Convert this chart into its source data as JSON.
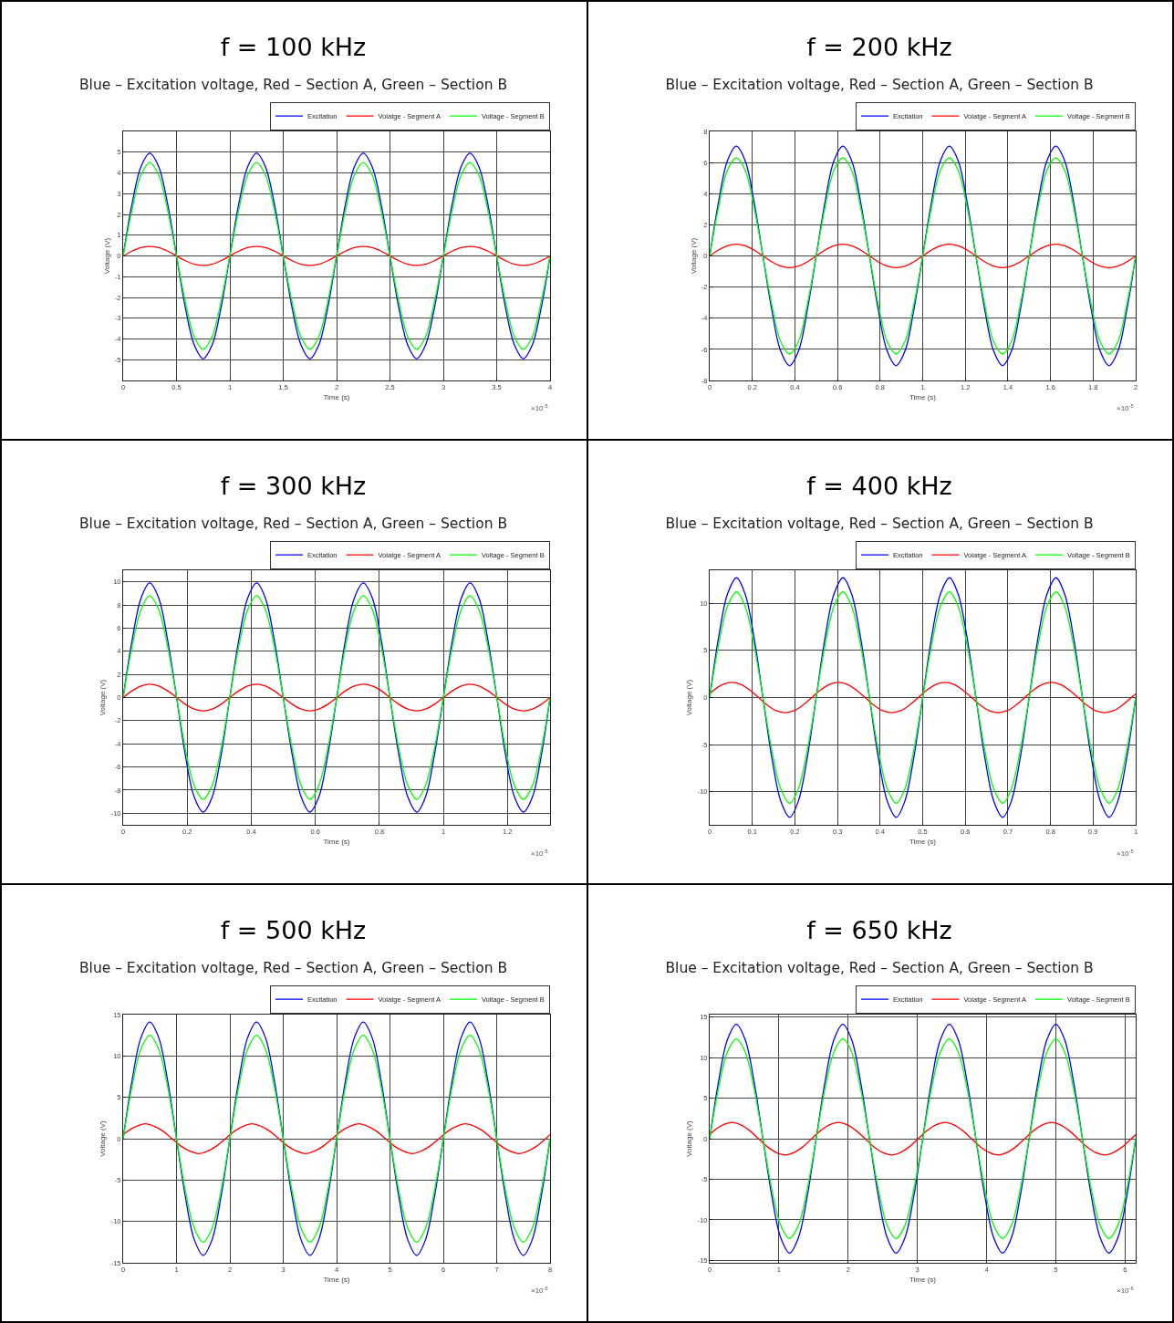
{
  "chart_data": [
    {
      "type": "line",
      "title": "f = 100 kHz",
      "subtitle": "Blue – Excitation voltage, Red – Section A, Green – Section B",
      "xlabel": "Time (s)",
      "ylabel": "Voltage (V)",
      "annotations": [
        "×10$^{-5}$"
      ],
      "grid": true,
      "legend": "top right",
      "xlim": [
        0,
        4
      ],
      "xticks": [
        0,
        0.5,
        1,
        1.5,
        2,
        2.5,
        3,
        3.5,
        4
      ],
      "ylim": [
        -6,
        6
      ],
      "yticks": [
        -5,
        -4,
        -3,
        -2,
        -1,
        0,
        1,
        2,
        3,
        4,
        5
      ],
      "x": [
        0,
        0.083,
        0.167,
        0.25,
        0.333,
        0.417,
        0.5,
        0.583,
        0.667,
        0.75,
        0.833,
        0.917,
        1,
        1.083,
        1.167,
        1.25,
        1.333,
        1.417,
        1.5,
        1.583,
        1.667,
        1.75,
        1.833,
        1.917,
        2,
        2.083,
        2.167,
        2.25,
        2.333,
        2.417,
        2.5,
        2.583,
        2.667,
        2.75,
        2.833,
        2.917,
        3,
        3.083,
        3.167,
        3.25,
        3.333,
        3.417,
        3.5,
        3.583,
        3.667,
        3.75,
        3.833,
        3.917,
        4
      ],
      "series": [
        {
          "name": "Excitation",
          "color": "#0000ff",
          "values": [
            0,
            2.5,
            4.3,
            4.95,
            4.3,
            2.5,
            0,
            -2.5,
            -4.3,
            -4.95,
            -4.3,
            -2.5,
            0,
            2.5,
            4.3,
            4.95,
            4.3,
            2.5,
            0,
            -2.5,
            -4.3,
            -4.95,
            -4.3,
            -2.5,
            0,
            2.5,
            4.3,
            4.95,
            4.3,
            2.5,
            0,
            -2.5,
            -4.3,
            -4.95,
            -4.3,
            -2.5,
            0,
            2.5,
            4.3,
            4.95,
            4.3,
            2.5,
            0,
            -2.5,
            -4.3,
            -4.95,
            -4.3,
            -2.5,
            0
          ]
        },
        {
          "name": "Volatge - Segment A",
          "color": "#ff0000",
          "values": [
            0,
            0.23,
            0.4,
            0.46,
            0.4,
            0.23,
            0,
            -0.23,
            -0.4,
            -0.46,
            -0.4,
            -0.23,
            0,
            0.23,
            0.4,
            0.46,
            0.4,
            0.23,
            0,
            -0.23,
            -0.4,
            -0.46,
            -0.4,
            -0.23,
            0,
            0.23,
            0.4,
            0.46,
            0.4,
            0.23,
            0,
            -0.23,
            -0.4,
            -0.46,
            -0.4,
            -0.23,
            0,
            0.23,
            0.4,
            0.46,
            0.4,
            0.23,
            0,
            -0.23,
            -0.4,
            -0.46,
            -0.4,
            -0.23,
            0
          ]
        },
        {
          "name": "Voltage - Segment B",
          "color": "#00ff00",
          "values": [
            0,
            2.2,
            3.9,
            4.5,
            3.9,
            2.2,
            0,
            -2.2,
            -3.9,
            -4.5,
            -3.9,
            -2.2,
            0,
            2.2,
            3.9,
            4.5,
            3.9,
            2.2,
            0,
            -2.2,
            -3.9,
            -4.5,
            -3.9,
            -2.2,
            0,
            2.2,
            3.9,
            4.5,
            3.9,
            2.2,
            0,
            -2.2,
            -3.9,
            -4.5,
            -3.9,
            -2.2,
            0,
            2.2,
            3.9,
            4.5,
            3.9,
            2.2,
            0,
            -2.2,
            -3.9,
            -4.5,
            -3.9,
            -2.2,
            0
          ]
        }
      ]
    },
    {
      "type": "line",
      "title": "f = 200 kHz",
      "subtitle": "Blue – Excitation voltage, Red – Section A, Green – Section B",
      "xlabel": "Time (s)",
      "ylabel": "Voltage (V)",
      "annotations": [
        "×10$^{-5}$"
      ],
      "grid": true,
      "legend": "top right",
      "xlim": [
        0,
        2
      ],
      "xticks": [
        0,
        0.2,
        0.4,
        0.6,
        0.8,
        1,
        1.2,
        1.4,
        1.6,
        1.8,
        2
      ],
      "ylim": [
        -8,
        8
      ],
      "yticks": [
        -8,
        -6,
        -4,
        -2,
        0,
        2,
        4,
        6,
        8
      ],
      "x": [
        0,
        0.042,
        0.083,
        0.125,
        0.167,
        0.208,
        0.25,
        0.292,
        0.333,
        0.375,
        0.417,
        0.458,
        0.5,
        0.542,
        0.583,
        0.625,
        0.667,
        0.708,
        0.75,
        0.792,
        0.833,
        0.875,
        0.917,
        0.958,
        1,
        1.042,
        1.083,
        1.125,
        1.167,
        1.208,
        1.25,
        1.292,
        1.333,
        1.375,
        1.417,
        1.458,
        1.5,
        1.542,
        1.583,
        1.625,
        1.667,
        1.708,
        1.75,
        1.792,
        1.833,
        1.875,
        1.917,
        1.958,
        2
      ],
      "series": [
        {
          "name": "Excitation",
          "color": "#0000ff",
          "values": [
            0,
            3.5,
            6.1,
            7.05,
            6.1,
            3.5,
            0,
            -3.5,
            -6.1,
            -7.05,
            -6.1,
            -3.5,
            0,
            3.5,
            6.1,
            7.05,
            6.1,
            3.5,
            0,
            -3.5,
            -6.1,
            -7.05,
            -6.1,
            -3.5,
            0,
            3.5,
            6.1,
            7.05,
            6.1,
            3.5,
            0,
            -3.5,
            -6.1,
            -7.05,
            -6.1,
            -3.5,
            0,
            3.5,
            6.1,
            7.05,
            6.1,
            3.5,
            0,
            -3.5,
            -6.1,
            -7.05,
            -6.1,
            -3.5,
            0
          ]
        },
        {
          "name": "Volatge - Segment A",
          "color": "#ff0000",
          "values": [
            0,
            0.38,
            0.65,
            0.75,
            0.65,
            0.38,
            0,
            -0.38,
            -0.65,
            -0.75,
            -0.65,
            -0.38,
            0,
            0.38,
            0.65,
            0.75,
            0.65,
            0.38,
            0,
            -0.38,
            -0.65,
            -0.75,
            -0.65,
            -0.38,
            0,
            0.38,
            0.65,
            0.75,
            0.65,
            0.38,
            0,
            -0.38,
            -0.65,
            -0.75,
            -0.65,
            -0.38,
            0,
            0.38,
            0.65,
            0.75,
            0.65,
            0.38,
            0,
            -0.38,
            -0.65,
            -0.75,
            -0.65,
            -0.38,
            0
          ]
        },
        {
          "name": "Voltage - Segment B",
          "color": "#00ff00",
          "values": [
            0,
            3.15,
            5.5,
            6.3,
            5.5,
            3.15,
            0,
            -3.15,
            -5.5,
            -6.3,
            -5.5,
            -3.15,
            0,
            3.15,
            5.5,
            6.3,
            5.5,
            3.15,
            0,
            -3.15,
            -5.5,
            -6.3,
            -5.5,
            -3.15,
            0,
            3.15,
            5.5,
            6.3,
            5.5,
            3.15,
            0,
            -3.15,
            -5.5,
            -6.3,
            -5.5,
            -3.15,
            0,
            3.15,
            5.5,
            6.3,
            5.5,
            3.15,
            0,
            -3.15,
            -5.5,
            -6.3,
            -5.5,
            -3.15,
            0
          ]
        }
      ]
    },
    {
      "type": "line",
      "title": "f = 300 kHz",
      "subtitle": "Blue – Excitation voltage, Red – Section A, Green – Section B",
      "xlabel": "Time (s)",
      "ylabel": "Voltage (V)",
      "annotations": [
        "×10$^{-5}$"
      ],
      "grid": true,
      "legend": "top right",
      "xlim": [
        0,
        1.333
      ],
      "xticks": [
        0,
        0.2,
        0.4,
        0.6,
        0.8,
        1,
        1.2
      ],
      "ylim": [
        -11,
        11
      ],
      "yticks": [
        -10,
        -8,
        -6,
        -4,
        -2,
        0,
        2,
        4,
        6,
        8,
        10
      ],
      "x": [
        0,
        0.028,
        0.056,
        0.083,
        0.111,
        0.139,
        0.167,
        0.194,
        0.222,
        0.25,
        0.278,
        0.306,
        0.333,
        0.361,
        0.389,
        0.417,
        0.444,
        0.472,
        0.5,
        0.528,
        0.556,
        0.583,
        0.611,
        0.639,
        0.667,
        0.694,
        0.722,
        0.75,
        0.778,
        0.806,
        0.833,
        0.861,
        0.889,
        0.917,
        0.944,
        0.972,
        1,
        1.028,
        1.056,
        1.083,
        1.111,
        1.139,
        1.167,
        1.194,
        1.222,
        1.25,
        1.278,
        1.306,
        1.333
      ],
      "series": [
        {
          "name": "Excitation",
          "color": "#0000ff",
          "values": [
            0,
            4.95,
            8.6,
            9.9,
            8.6,
            4.95,
            0,
            -4.95,
            -8.6,
            -9.9,
            -8.6,
            -4.95,
            0,
            4.95,
            8.6,
            9.9,
            8.6,
            4.95,
            0,
            -4.95,
            -8.6,
            -9.9,
            -8.6,
            -4.95,
            0,
            4.95,
            8.6,
            9.9,
            8.6,
            4.95,
            0,
            -4.95,
            -8.6,
            -9.9,
            -8.6,
            -4.95,
            0,
            4.95,
            8.6,
            9.9,
            8.6,
            4.95,
            0,
            -4.95,
            -8.6,
            -9.9,
            -8.6,
            -4.95,
            0
          ]
        },
        {
          "name": "Volatge - Segment A",
          "color": "#ff0000",
          "values": [
            0,
            0.58,
            1,
            1.15,
            1,
            0.58,
            0,
            -0.58,
            -1,
            -1.15,
            -1,
            -0.58,
            0,
            0.58,
            1,
            1.15,
            1,
            0.58,
            0,
            -0.58,
            -1,
            -1.15,
            -1,
            -0.58,
            0,
            0.58,
            1,
            1.15,
            1,
            0.58,
            0,
            -0.58,
            -1,
            -1.15,
            -1,
            -0.58,
            0,
            0.58,
            1,
            1.15,
            1,
            0.58,
            0,
            -0.58,
            -1,
            -1.15,
            -1,
            -0.58,
            0
          ]
        },
        {
          "name": "Voltage - Segment B",
          "color": "#00ff00",
          "values": [
            0,
            4.4,
            7.6,
            8.8,
            7.6,
            4.4,
            0,
            -4.4,
            -7.6,
            -8.8,
            -7.6,
            -4.4,
            0,
            4.4,
            7.6,
            8.8,
            7.6,
            4.4,
            0,
            -4.4,
            -7.6,
            -8.8,
            -7.6,
            -4.4,
            0,
            4.4,
            7.6,
            8.8,
            7.6,
            4.4,
            0,
            -4.4,
            -7.6,
            -8.8,
            -7.6,
            -4.4,
            0,
            4.4,
            7.6,
            8.8,
            7.6,
            4.4,
            0,
            -4.4,
            -7.6,
            -8.8,
            -7.6,
            -4.4,
            0
          ]
        }
      ]
    },
    {
      "type": "line",
      "title": "f = 400 kHz",
      "subtitle": "Blue – Excitation voltage, Red – Section A, Green – Section B",
      "xlabel": "Time (s)",
      "ylabel": "Voltage (V)",
      "annotations": [
        "×10$^{-5}$"
      ],
      "grid": true,
      "legend": "top right",
      "xlim": [
        0,
        1
      ],
      "xticks": [
        0,
        0.1,
        0.2,
        0.3,
        0.4,
        0.5,
        0.6,
        0.7,
        0.8,
        0.9,
        1
      ],
      "ylim": [
        -13.5,
        13.5
      ],
      "yticks": [
        -10,
        -5,
        0,
        5,
        10
      ],
      "x": [
        0,
        0.021,
        0.042,
        0.063,
        0.083,
        0.104,
        0.125,
        0.146,
        0.167,
        0.188,
        0.208,
        0.229,
        0.25,
        0.271,
        0.292,
        0.313,
        0.333,
        0.354,
        0.375,
        0.396,
        0.417,
        0.438,
        0.458,
        0.479,
        0.5,
        0.521,
        0.542,
        0.563,
        0.583,
        0.604,
        0.625,
        0.646,
        0.667,
        0.688,
        0.708,
        0.729,
        0.75,
        0.771,
        0.792,
        0.813,
        0.833,
        0.854,
        0.875,
        0.896,
        0.917,
        0.938,
        0.958,
        0.979,
        1
      ],
      "series": [
        {
          "name": "Excitation",
          "color": "#0000ff",
          "values": [
            0,
            6.4,
            11,
            12.7,
            11,
            6.4,
            0,
            -6.4,
            -11,
            -12.7,
            -11,
            -6.4,
            0,
            6.4,
            11,
            12.7,
            11,
            6.4,
            0,
            -6.4,
            -11,
            -12.7,
            -11,
            -6.4,
            0,
            6.4,
            11,
            12.7,
            11,
            6.4,
            0,
            -6.4,
            -11,
            -12.7,
            -11,
            -6.4,
            0,
            6.4,
            11,
            12.7,
            11,
            6.4,
            0,
            -6.4,
            -11,
            -12.7,
            -11,
            -6.4,
            0
          ]
        },
        {
          "name": "Volatge - Segment A",
          "color": "#ff0000",
          "x": [
            0,
            0.01,
            0.031,
            0.052,
            0.073,
            0.094,
            0.115,
            0.135,
            0.156,
            0.177,
            0.198,
            0.219,
            0.24,
            0.26,
            0.281,
            0.302,
            0.323,
            0.344,
            0.365,
            0.385,
            0.406,
            0.427,
            0.448,
            0.469,
            0.49,
            0.51,
            0.531,
            0.552,
            0.573,
            0.594,
            0.615,
            0.635,
            0.656,
            0.677,
            0.698,
            0.719,
            0.74,
            0.76,
            0.781,
            0.802,
            0.823,
            0.844,
            0.865,
            0.885,
            0.906,
            0.927,
            0.948,
            0.969,
            0.99,
            1
          ],
          "values": [
            0.4,
            0.8,
            1.4,
            1.6,
            1.4,
            0.8,
            0,
            -0.8,
            -1.4,
            -1.6,
            -1.4,
            -0.8,
            0,
            0.8,
            1.4,
            1.6,
            1.4,
            0.8,
            0,
            -0.8,
            -1.4,
            -1.6,
            -1.4,
            -0.8,
            0,
            0.8,
            1.4,
            1.6,
            1.4,
            0.8,
            0,
            -0.8,
            -1.4,
            -1.6,
            -1.4,
            -0.8,
            0,
            0.8,
            1.4,
            1.6,
            1.4,
            0.8,
            0,
            -0.8,
            -1.4,
            -1.6,
            -1.4,
            -0.8,
            0,
            0.4
          ]
        },
        {
          "name": "Voltage - Segment B",
          "color": "#00ff00",
          "values": [
            0,
            5.6,
            9.7,
            11.2,
            9.7,
            5.6,
            0,
            -5.6,
            -9.7,
            -11.2,
            -9.7,
            -5.6,
            0,
            5.6,
            9.7,
            11.2,
            9.7,
            5.6,
            0,
            -5.6,
            -9.7,
            -11.2,
            -9.7,
            -5.6,
            0,
            5.6,
            9.7,
            11.2,
            9.7,
            5.6,
            0,
            -5.6,
            -9.7,
            -11.2,
            -9.7,
            -5.6,
            0,
            5.6,
            9.7,
            11.2,
            9.7,
            5.6,
            0,
            -5.6,
            -9.7,
            -11.2,
            -9.7,
            -5.6,
            0
          ]
        }
      ]
    },
    {
      "type": "line",
      "title": "f = 500 kHz",
      "subtitle": "Blue – Excitation voltage, Red – Section A, Green – Section B",
      "xlabel": "Time (s)",
      "ylabel": "Voltage (V)",
      "annotations": [
        "×10$^{-6}$"
      ],
      "grid": true,
      "legend": "top right",
      "xlim": [
        0,
        8
      ],
      "xticks": [
        0,
        1,
        2,
        3,
        4,
        5,
        6,
        7,
        8
      ],
      "ylim": [
        -15,
        15
      ],
      "yticks": [
        -15,
        -10,
        -5,
        0,
        5,
        10,
        15
      ],
      "x": [
        0,
        0.167,
        0.333,
        0.5,
        0.667,
        0.833,
        1,
        1.167,
        1.333,
        1.5,
        1.667,
        1.833,
        2,
        2.167,
        2.333,
        2.5,
        2.667,
        2.833,
        3,
        3.167,
        3.333,
        3.5,
        3.667,
        3.833,
        4,
        4.167,
        4.333,
        4.5,
        4.667,
        4.833,
        5,
        5.167,
        5.333,
        5.5,
        5.667,
        5.833,
        6,
        6.167,
        6.333,
        6.5,
        6.667,
        6.833,
        7,
        7.167,
        7.333,
        7.5,
        7.667,
        7.833,
        8
      ],
      "series": [
        {
          "name": "Excitation",
          "color": "#0000ff",
          "values": [
            0,
            7.05,
            12.2,
            14.1,
            12.2,
            7.05,
            0,
            -7.05,
            -12.2,
            -14.1,
            -12.2,
            -7.05,
            0,
            7.05,
            12.2,
            14.1,
            12.2,
            7.05,
            0,
            -7.05,
            -12.2,
            -14.1,
            -12.2,
            -7.05,
            0,
            7.05,
            12.2,
            14.1,
            12.2,
            7.05,
            0,
            -7.05,
            -12.2,
            -14.1,
            -12.2,
            -7.05,
            0,
            7.05,
            12.2,
            14.1,
            12.2,
            7.05,
            0,
            -7.05,
            -12.2,
            -14.1,
            -12.2,
            -7.05,
            0
          ]
        },
        {
          "name": "Volatge - Segment A",
          "color": "#ff0000",
          "x": [
            0,
            0.083,
            0.25,
            0.417,
            0.583,
            0.75,
            0.917,
            1.083,
            1.25,
            1.417,
            1.583,
            1.75,
            1.917,
            2.083,
            2.25,
            2.417,
            2.583,
            2.75,
            2.917,
            3.083,
            3.25,
            3.417,
            3.583,
            3.75,
            3.917,
            4.083,
            4.25,
            4.417,
            4.583,
            4.75,
            4.917,
            5.083,
            5.25,
            5.417,
            5.583,
            5.75,
            5.917,
            6.083,
            6.25,
            6.417,
            6.583,
            6.75,
            6.917,
            7.083,
            7.25,
            7.417,
            7.583,
            7.75,
            7.917,
            8
          ],
          "values": [
            0.5,
            0.9,
            1.5,
            1.8,
            1.5,
            0.9,
            0,
            -0.9,
            -1.5,
            -1.8,
            -1.5,
            -0.9,
            0,
            0.9,
            1.5,
            1.8,
            1.5,
            0.9,
            0,
            -0.9,
            -1.5,
            -1.8,
            -1.5,
            -0.9,
            0,
            0.9,
            1.5,
            1.8,
            1.5,
            0.9,
            0,
            -0.9,
            -1.5,
            -1.8,
            -1.5,
            -0.9,
            0,
            0.9,
            1.5,
            1.8,
            1.5,
            0.9,
            0,
            -0.9,
            -1.5,
            -1.8,
            -1.5,
            -0.9,
            0,
            0.5
          ]
        },
        {
          "name": "Voltage - Segment B",
          "color": "#00ff00",
          "values": [
            0,
            6.3,
            10.8,
            12.5,
            10.8,
            6.3,
            0,
            -6.3,
            -10.8,
            -12.5,
            -10.8,
            -6.3,
            0,
            6.3,
            10.8,
            12.5,
            10.8,
            6.3,
            0,
            -6.3,
            -10.8,
            -12.5,
            -10.8,
            -6.3,
            0,
            6.3,
            10.8,
            12.5,
            10.8,
            6.3,
            0,
            -6.3,
            -10.8,
            -12.5,
            -10.8,
            -6.3,
            0,
            6.3,
            10.8,
            12.5,
            10.8,
            6.3,
            0,
            -6.3,
            -10.8,
            -12.5,
            -10.8,
            -6.3,
            0
          ]
        }
      ]
    },
    {
      "type": "line",
      "title": "f = 650 kHz",
      "subtitle": "Blue – Excitation voltage, Red – Section A, Green – Section B",
      "xlabel": "Time (s)",
      "ylabel": "Voltage (V)",
      "annotations": [
        "×10$^{-6}$"
      ],
      "grid": true,
      "legend": "top right",
      "xlim": [
        0,
        6.154
      ],
      "xticks": [
        0,
        1,
        2,
        3,
        4,
        5,
        6
      ],
      "ylim": [
        -15.3,
        15.3
      ],
      "yticks": [
        -15,
        -10,
        -5,
        0,
        5,
        10,
        15
      ],
      "x": [
        0,
        0.128,
        0.256,
        0.385,
        0.513,
        0.641,
        0.769,
        0.897,
        1.026,
        1.154,
        1.282,
        1.41,
        1.538,
        1.667,
        1.795,
        1.923,
        2.051,
        2.179,
        2.308,
        2.436,
        2.564,
        2.692,
        2.821,
        2.949,
        3.077,
        3.205,
        3.333,
        3.462,
        3.59,
        3.718,
        3.846,
        3.974,
        4.103,
        4.231,
        4.359,
        4.487,
        4.615,
        4.744,
        4.872,
        5,
        5.128,
        5.256,
        5.385,
        5.513,
        5.641,
        5.769,
        5.897,
        6.026,
        6.154
      ],
      "series": [
        {
          "name": "Excitation",
          "color": "#0000ff",
          "values": [
            0,
            7.05,
            12.2,
            14.1,
            12.2,
            7.05,
            0,
            -7.05,
            -12.2,
            -14.1,
            -12.2,
            -7.05,
            0,
            7.05,
            12.2,
            14.1,
            12.2,
            7.05,
            0,
            -7.05,
            -12.2,
            -14.1,
            -12.2,
            -7.05,
            0,
            7.05,
            12.2,
            14.1,
            12.2,
            7.05,
            0,
            -7.05,
            -12.2,
            -14.1,
            -12.2,
            -7.05,
            0,
            7.05,
            12.2,
            14.1,
            12.2,
            7.05,
            0,
            -7.05,
            -12.2,
            -14.1,
            -12.2,
            -7.05,
            0
          ]
        },
        {
          "name": "Volatge - Segment A",
          "color": "#ff0000",
          "x": [
            0,
            0.064,
            0.192,
            0.321,
            0.449,
            0.577,
            0.705,
            0.833,
            0.962,
            1.09,
            1.218,
            1.346,
            1.474,
            1.603,
            1.731,
            1.859,
            1.987,
            2.115,
            2.244,
            2.372,
            2.5,
            2.628,
            2.756,
            2.885,
            3.013,
            3.141,
            3.269,
            3.397,
            3.526,
            3.654,
            3.782,
            3.91,
            4.038,
            4.167,
            4.295,
            4.423,
            4.551,
            4.679,
            4.808,
            4.936,
            5.064,
            5.192,
            5.321,
            5.449,
            5.577,
            5.705,
            5.833,
            5.962,
            6.09,
            6.154
          ],
          "values": [
            0.5,
            1,
            1.7,
            2,
            1.7,
            1,
            0,
            -1,
            -1.7,
            -2,
            -1.7,
            -1,
            0,
            1,
            1.7,
            2,
            1.7,
            1,
            0,
            -1,
            -1.7,
            -2,
            -1.7,
            -1,
            0,
            1,
            1.7,
            2,
            1.7,
            1,
            0,
            -1,
            -1.7,
            -2,
            -1.7,
            -1,
            0,
            1,
            1.7,
            2,
            1.7,
            1,
            0,
            -1,
            -1.7,
            -2,
            -1.7,
            -1,
            0,
            0.5
          ]
        },
        {
          "name": "Voltage - Segment B",
          "color": "#00ff00",
          "values": [
            0,
            6.2,
            10.7,
            12.3,
            10.7,
            6.2,
            0,
            -6.2,
            -10.7,
            -12.3,
            -10.7,
            -6.2,
            0,
            6.2,
            10.7,
            12.3,
            10.7,
            6.2,
            0,
            -6.2,
            -10.7,
            -12.3,
            -10.7,
            -6.2,
            0,
            6.2,
            10.7,
            12.3,
            10.7,
            6.2,
            0,
            -6.2,
            -10.7,
            -12.3,
            -10.7,
            -6.2,
            0,
            6.2,
            10.7,
            12.3,
            10.7,
            6.2,
            0,
            -6.2,
            -10.7,
            -12.3,
            -10.7,
            -6.2,
            0
          ]
        }
      ]
    }
  ]
}
